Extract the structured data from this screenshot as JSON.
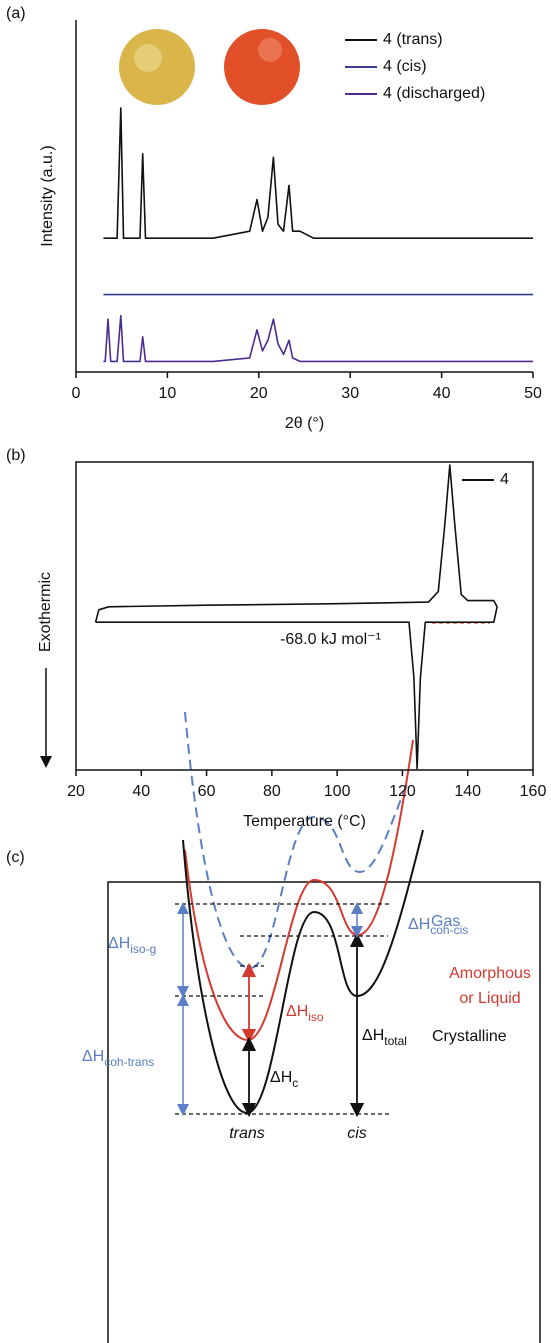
{
  "chart_data": [
    {
      "type": "line",
      "panel_label": "(a)",
      "ylabel": "Intensity (a.u.)",
      "xlabel": "2θ (°)",
      "x": [
        3,
        3.2,
        3.5,
        3.8,
        4.5,
        4.9,
        5.2,
        5.6,
        7,
        7.3,
        7.6,
        9,
        15,
        19,
        19.8,
        20.4,
        21,
        21.6,
        22.1,
        22.7,
        23.3,
        23.7,
        24.5,
        26,
        35,
        50
      ],
      "series": [
        {
          "name": "4 (trans)",
          "color": "#111111",
          "values": [
            38,
            38,
            38,
            38,
            38,
            75,
            38,
            38,
            38,
            62,
            38,
            38,
            38,
            40,
            49,
            40,
            44,
            61,
            42,
            40,
            53,
            40,
            40,
            38,
            38,
            38
          ]
        },
        {
          "name": "4 (cis)",
          "color": "#3b3b8f",
          "values": [
            22,
            22,
            22,
            22,
            22,
            22,
            22,
            22,
            22,
            22,
            22,
            22,
            22,
            22,
            22,
            22,
            22,
            22,
            22,
            22,
            22,
            22,
            22,
            22,
            22,
            22
          ]
        },
        {
          "name": "4 (discharged)",
          "color": "#4b2d8f",
          "values": [
            3,
            3,
            15,
            3,
            3,
            16,
            3,
            3,
            3,
            10,
            3,
            3,
            3,
            4,
            12,
            6,
            9,
            15,
            8,
            5,
            9,
            4,
            3,
            3,
            3,
            3
          ]
        }
      ],
      "xlim": [
        0,
        50
      ],
      "ylim": [
        0,
        100
      ],
      "xticks": [
        0,
        10,
        20,
        30,
        40,
        50
      ],
      "legend": "upper right"
    },
    {
      "type": "line",
      "panel_label": "(b)",
      "ylabel": "Exothermic",
      "xlabel": "Temperature (°C)",
      "x": [
        26,
        27,
        30,
        60,
        100,
        128,
        131,
        133,
        134.5,
        136,
        138,
        140,
        148,
        149,
        148,
        127,
        125.5,
        124.5,
        123.5,
        122,
        60,
        26
      ],
      "series": [
        {
          "name": "4",
          "color": "#111111",
          "values": [
            48,
            52,
            53,
            53.5,
            54,
            54.5,
            58,
            80,
            99,
            80,
            57,
            55,
            55,
            53,
            48,
            48,
            30,
            0.5,
            30,
            48,
            48,
            48
          ]
        }
      ],
      "xlim": [
        20,
        160
      ],
      "ylim": [
        0,
        100
      ],
      "xticks": [
        20,
        40,
        60,
        80,
        100,
        120,
        140,
        160
      ],
      "annotation": "-68.0 kJ mol⁻¹",
      "legend": "upper right"
    }
  ],
  "diagram": {
    "panel_label": "(c)",
    "curves": [
      "Gas",
      "Amorphous",
      "or Liquid",
      "Crystalline"
    ],
    "quantities": [
      {
        "main": "ΔH",
        "sub": "iso-g"
      },
      {
        "main": "ΔH",
        "sub": "coh-trans"
      },
      {
        "main": "ΔH",
        "sub": "iso"
      },
      {
        "main": "ΔH",
        "sub": "c"
      },
      {
        "main": "ΔH",
        "sub": "total"
      },
      {
        "main": "ΔH",
        "sub": "coh-cis"
      }
    ],
    "states": [
      "trans",
      "cis"
    ]
  }
}
